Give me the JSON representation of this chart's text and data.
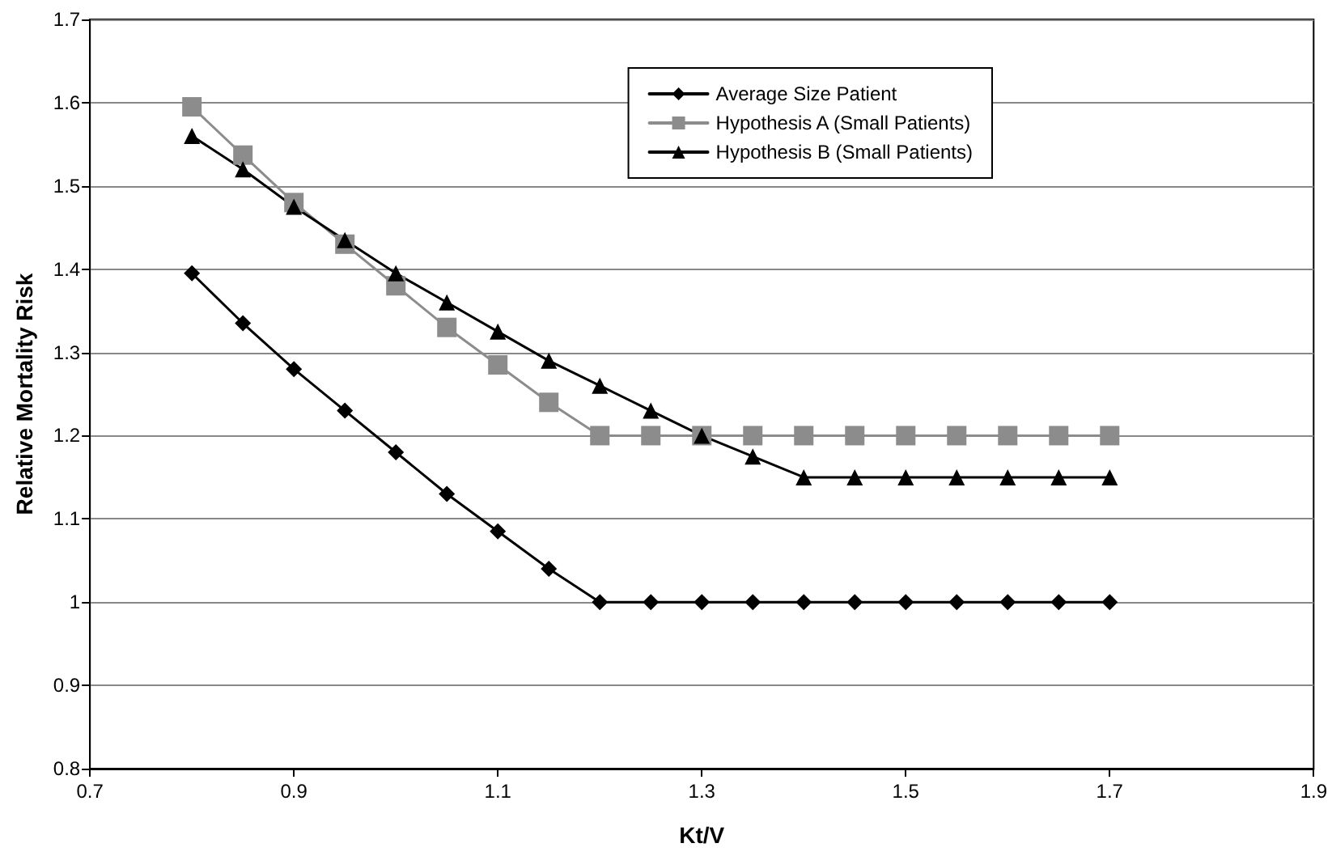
{
  "chart_data": {
    "type": "line",
    "xlabel": "Kt/V",
    "ylabel": "Relative Mortality Risk",
    "x": [
      0.8,
      0.85,
      0.9,
      0.95,
      1.0,
      1.05,
      1.1,
      1.15,
      1.2,
      1.25,
      1.3,
      1.35,
      1.4,
      1.45,
      1.5,
      1.55,
      1.6,
      1.65,
      1.7
    ],
    "series": [
      {
        "name": "Average Size Patient",
        "color": "#000000",
        "marker": "diamond",
        "values": [
          1.395,
          1.335,
          1.28,
          1.23,
          1.18,
          1.13,
          1.085,
          1.04,
          1.0,
          1.0,
          1.0,
          1.0,
          1.0,
          1.0,
          1.0,
          1.0,
          1.0,
          1.0,
          1.0
        ]
      },
      {
        "name": "Hypothesis A (Small Patients)",
        "color": "#8c8c8c",
        "marker": "square",
        "values": [
          1.595,
          1.537,
          1.48,
          1.43,
          1.38,
          1.33,
          1.285,
          1.24,
          1.2,
          1.2,
          1.2,
          1.2,
          1.2,
          1.2,
          1.2,
          1.2,
          1.2,
          1.2,
          1.2
        ]
      },
      {
        "name": "Hypothesis B (Small Patients)",
        "color": "#000000",
        "marker": "triangle",
        "values": [
          1.56,
          1.52,
          1.475,
          1.435,
          1.395,
          1.36,
          1.325,
          1.29,
          1.26,
          1.23,
          1.2,
          1.175,
          1.15,
          1.15,
          1.15,
          1.15,
          1.15,
          1.15,
          1.15
        ]
      }
    ],
    "xlim": [
      0.7,
      1.9
    ],
    "xticks": [
      0.7,
      0.9,
      1.1,
      1.3,
      1.5,
      1.7,
      1.9
    ],
    "ylim": [
      0.8,
      1.7
    ],
    "yticks": [
      0.8,
      0.9,
      1,
      1.1,
      1.2,
      1.3,
      1.4,
      1.5,
      1.6,
      1.7
    ],
    "grid": "y",
    "legend": "top right",
    "line_style": "solid"
  }
}
